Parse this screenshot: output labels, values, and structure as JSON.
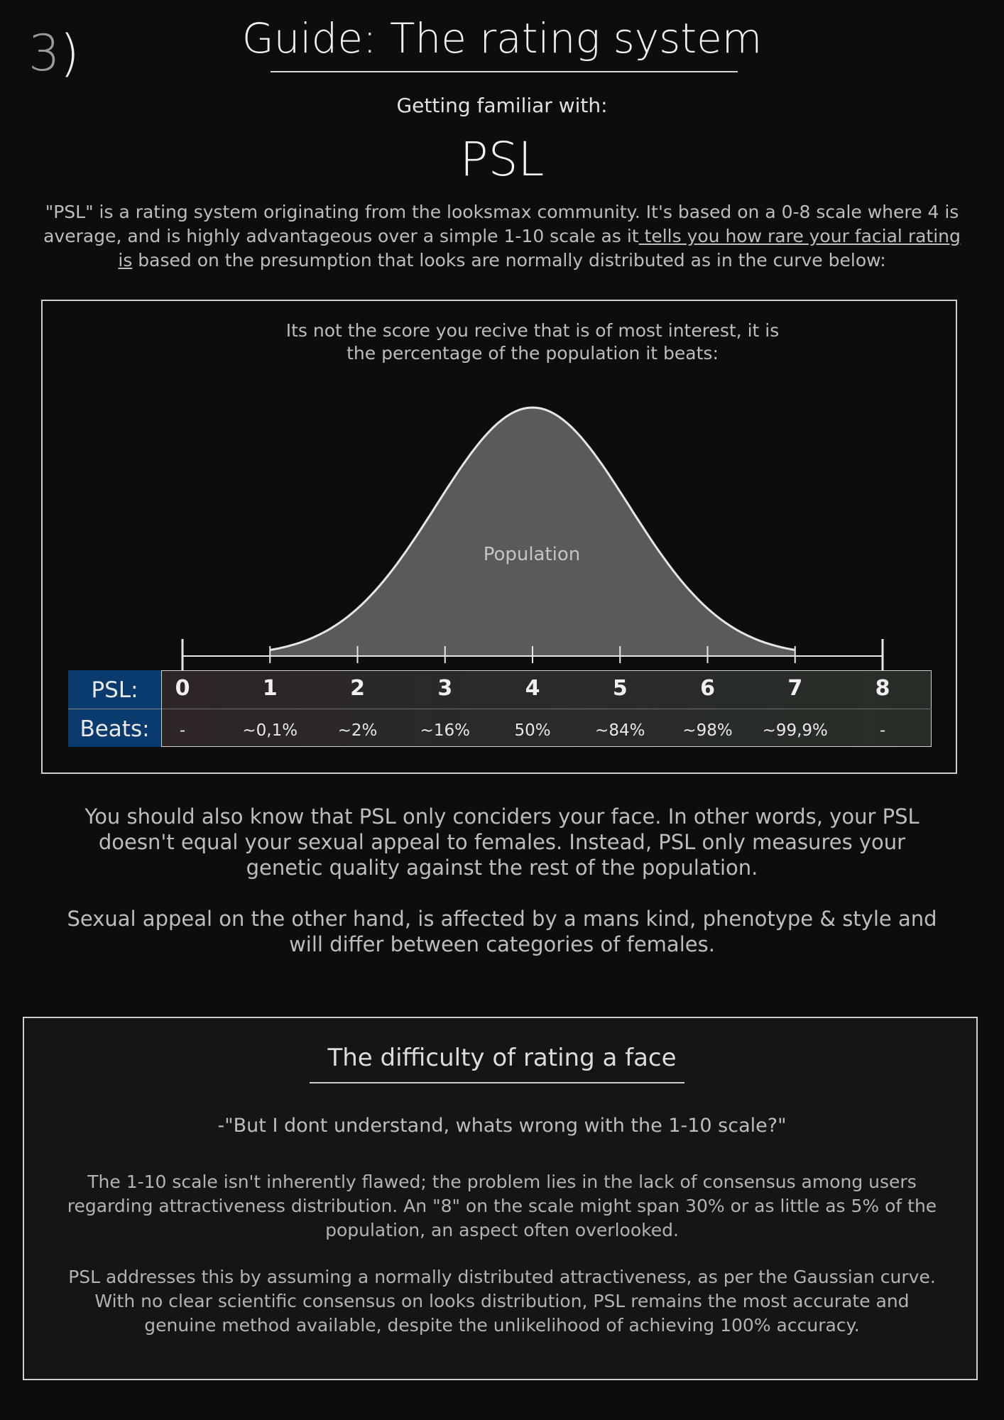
{
  "header": {
    "step_number": "3",
    "step_paren": ")",
    "title": "Guide: The rating system",
    "subtitle": "Getting familiar with:",
    "heading": "PSL"
  },
  "intro": {
    "part1": "\"PSL\" is a rating system originating from the looksmax community. It's based on a 0-8 scale where 4 is average, and is highly advantageous over a simple 1-10 scale as it",
    "underlined": " tells you how rare your facial rating is",
    "part2": " based on the presumption that looks are normally distributed as in the curve below:"
  },
  "chart": {
    "caption_line1": "Its not the score you recive that is of most interest, it is",
    "caption_line2": "the percentage of the population it beats:",
    "curve_label": "Population",
    "curve_fill": "#5a5a5a",
    "curve_stroke": "#e6e6e6",
    "table_label_bg": "#0a3b6f",
    "psl_label": "PSL:",
    "beats_label": "Beats:"
  },
  "chart_data": {
    "type": "area",
    "title": "",
    "x": [
      0,
      1,
      2,
      3,
      4,
      5,
      6,
      7,
      8
    ],
    "distribution": "normal",
    "mean": 4,
    "psl_scores": [
      "0",
      "1",
      "2",
      "3",
      "4",
      "5",
      "6",
      "7",
      "8"
    ],
    "beats": [
      "-",
      "~0,1%",
      "~2%",
      "~16%",
      "50%",
      "~84%",
      "~98%",
      "~99,9%",
      "-"
    ],
    "series": [
      {
        "label": "Population"
      }
    ],
    "grid": false
  },
  "paragraphs": {
    "face_only": "You should also know that PSL only concider s your face. In other words, your PSL doesn't equal your sexual appeal to females. Instead, PSL only measures your genetic quality against the rest of the population.",
    "appeal": "Sexual appeal on the other hand, is affected by a mans kind, phenotype & style and will differ between categories of females."
  },
  "difficulty": {
    "title": "The difficulty of rating a face",
    "quote": "-\"But I dont understand, whats wrong with the 1-10 scale?\"",
    "p1": "The 1-10 scale isn't inherently flawed; the problem lies in the lack of consensus among users regarding attractiveness distribution. An \"8\" on the scale might span 30% or as little as 5% of the population, an aspect often overlooked.",
    "p2": "PSL addresses this by assuming a normally distributed attractiveness, as per the Gaussian curve. With no clear scientific consensus on looks distribution, PSL remains the most accurate and genuine method available, despite the unlikelihood of achieving 100% accuracy."
  },
  "colors": {
    "background": "#0d0d0d",
    "text": "#bdbdbd",
    "accent_blue": "#0a3b6f"
  }
}
